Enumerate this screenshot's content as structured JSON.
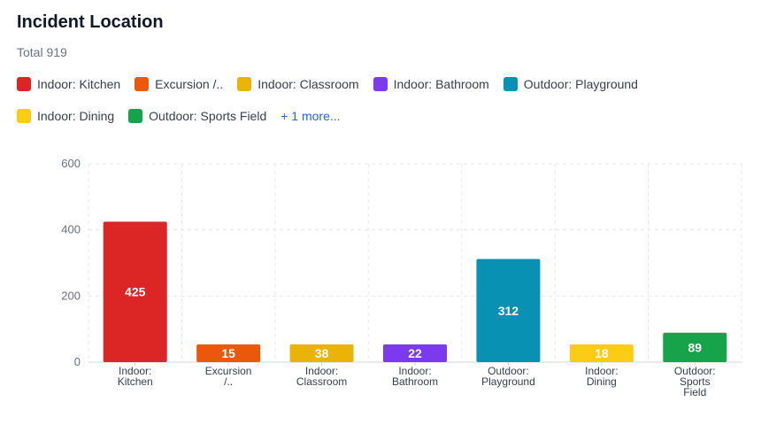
{
  "header": {
    "title": "Incident Location",
    "total": "Total 919"
  },
  "legend": {
    "rows": [
      [
        {
          "label": "Indoor: Kitchen",
          "color": "#dc2626"
        },
        {
          "label": "Excursion /..",
          "color": "#ea580c"
        },
        {
          "label": "Indoor: Classroom",
          "color": "#eab308"
        },
        {
          "label": "Indoor: Bathroom",
          "color": "#7c3aed"
        },
        {
          "label": "Outdoor: Playground",
          "color": "#0891b2"
        }
      ],
      [
        {
          "label": "Indoor: Dining",
          "color": "#facc15"
        },
        {
          "label": "Outdoor: Sports Field",
          "color": "#16a34a"
        }
      ]
    ],
    "more_label": "+ 1 more..."
  },
  "chart_data": {
    "type": "bar",
    "categories": [
      [
        "Indoor:",
        "Kitchen"
      ],
      [
        "Excursion",
        "/.."
      ],
      [
        "Indoor:",
        "Classroom"
      ],
      [
        "Indoor:",
        "Bathroom"
      ],
      [
        "Outdoor:",
        "Playground"
      ],
      [
        "Indoor:",
        "Dining"
      ],
      [
        "Outdoor:",
        "Sports",
        "Field"
      ]
    ],
    "values": [
      425,
      15,
      38,
      22,
      312,
      18,
      89
    ],
    "colors": [
      "#dc2626",
      "#ea580c",
      "#eab308",
      "#7c3aed",
      "#0891b2",
      "#facc15",
      "#16a34a"
    ],
    "ylim": [
      0,
      600
    ],
    "yticks": [
      0,
      200,
      400,
      600
    ],
    "grid": true
  }
}
